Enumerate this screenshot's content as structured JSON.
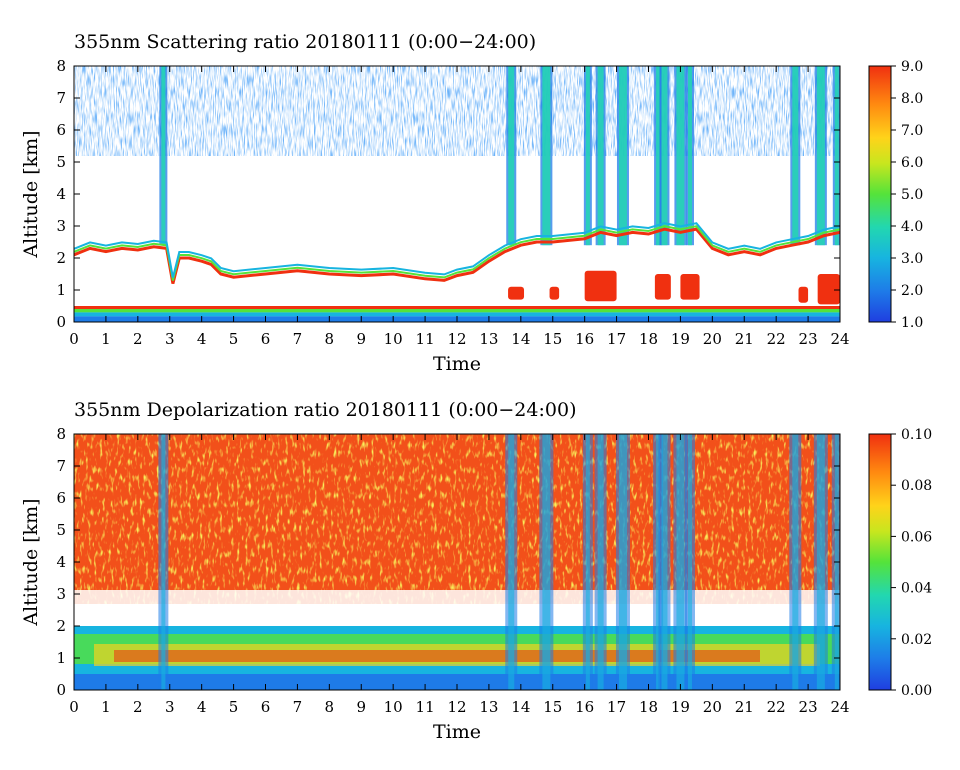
{
  "chart_data": [
    {
      "type": "heatmap",
      "title": "355nm Scattering ratio  20180111 (0:00−24:00)",
      "xlabel": "Time",
      "ylabel": "Altitude [km]",
      "xlim": [
        0,
        24
      ],
      "ylim": [
        0,
        8
      ],
      "x_ticks": [
        "0",
        "1",
        "2",
        "3",
        "4",
        "5",
        "6",
        "7",
        "8",
        "9",
        "10",
        "11",
        "12",
        "13",
        "14",
        "15",
        "16",
        "17",
        "18",
        "19",
        "20",
        "21",
        "22",
        "23",
        "24"
      ],
      "y_ticks": [
        "0",
        "1",
        "2",
        "3",
        "4",
        "5",
        "6",
        "7",
        "8"
      ],
      "colorbar": {
        "range": [
          1.0,
          9.0
        ],
        "tick_labels": [
          "1.0",
          "2.0",
          "3.0",
          "4.0",
          "5.0",
          "6.0",
          "7.0",
          "8.0",
          "9.0"
        ],
        "colormap": "rainbow"
      },
      "layers": {
        "surface_band_km": [
          0.3,
          0.5
        ],
        "boundary_layer_top_km": [
          [
            0,
            2.1
          ],
          [
            0.5,
            2.3
          ],
          [
            1,
            2.2
          ],
          [
            1.5,
            2.3
          ],
          [
            2,
            2.25
          ],
          [
            2.5,
            2.35
          ],
          [
            2.9,
            2.3
          ],
          [
            3.1,
            1.2
          ],
          [
            3.3,
            2.0
          ],
          [
            3.6,
            2.0
          ],
          [
            4,
            1.9
          ],
          [
            4.3,
            1.8
          ],
          [
            4.6,
            1.5
          ],
          [
            5,
            1.4
          ],
          [
            6,
            1.5
          ],
          [
            7,
            1.6
          ],
          [
            8,
            1.5
          ],
          [
            9,
            1.45
          ],
          [
            10,
            1.5
          ],
          [
            11,
            1.35
          ],
          [
            11.6,
            1.3
          ],
          [
            12,
            1.45
          ],
          [
            12.5,
            1.55
          ],
          [
            13,
            1.9
          ],
          [
            13.5,
            2.2
          ],
          [
            14,
            2.4
          ],
          [
            14.5,
            2.5
          ],
          [
            15,
            2.5
          ],
          [
            15.5,
            2.55
          ],
          [
            16,
            2.6
          ],
          [
            16.5,
            2.8
          ],
          [
            17,
            2.7
          ],
          [
            17.5,
            2.8
          ],
          [
            18,
            2.75
          ],
          [
            18.5,
            2.9
          ],
          [
            19,
            2.8
          ],
          [
            19.5,
            2.9
          ],
          [
            20,
            2.3
          ],
          [
            20.5,
            2.1
          ],
          [
            21,
            2.2
          ],
          [
            21.5,
            2.1
          ],
          [
            22,
            2.3
          ],
          [
            22.5,
            2.4
          ],
          [
            23,
            2.5
          ],
          [
            23.5,
            2.7
          ],
          [
            24,
            2.8
          ]
        ],
        "high_ratio_patches": [
          {
            "t": [
              13.6,
              14.1
            ],
            "alt": [
              0.7,
              1.1
            ]
          },
          {
            "t": [
              14.9,
              15.2
            ],
            "alt": [
              0.7,
              1.1
            ]
          },
          {
            "t": [
              16.0,
              17.0
            ],
            "alt": [
              0.65,
              1.6
            ]
          },
          {
            "t": [
              18.2,
              18.7
            ],
            "alt": [
              0.7,
              1.5
            ]
          },
          {
            "t": [
              19.0,
              19.6
            ],
            "alt": [
              0.7,
              1.5
            ]
          },
          {
            "t": [
              22.7,
              23.0
            ],
            "alt": [
              0.6,
              1.1
            ]
          },
          {
            "t": [
              23.3,
              24.0
            ],
            "alt": [
              0.55,
              1.5
            ]
          }
        ],
        "cloud_columns_t": [
          2.8,
          13.7,
          14.8,
          16.1,
          16.5,
          17.2,
          18.3,
          18.5,
          19.0,
          19.3,
          22.6,
          23.4,
          23.9
        ]
      }
    },
    {
      "type": "heatmap",
      "title": "355nm Depolarization ratio  20180111 (0:00−24:00)",
      "xlabel": "Time",
      "ylabel": "Altitude [km]",
      "xlim": [
        0,
        24
      ],
      "ylim": [
        0,
        8
      ],
      "x_ticks": [
        "0",
        "1",
        "2",
        "3",
        "4",
        "5",
        "6",
        "7",
        "8",
        "9",
        "10",
        "11",
        "12",
        "13",
        "14",
        "15",
        "16",
        "17",
        "18",
        "19",
        "20",
        "21",
        "22",
        "23",
        "24"
      ],
      "y_ticks": [
        "0",
        "1",
        "2",
        "3",
        "4",
        "5",
        "6",
        "7",
        "8"
      ],
      "colorbar": {
        "range": [
          0.0,
          0.1
        ],
        "tick_labels": [
          "0.00",
          "0.02",
          "0.04",
          "0.06",
          "0.08",
          "0.10"
        ],
        "colormap": "rainbow"
      },
      "layers": {
        "aerosol_layer_top_km": 2.0,
        "free_troposphere_value": 0.09,
        "cloud_columns_t": [
          2.8,
          13.7,
          14.8,
          16.1,
          16.5,
          17.2,
          18.3,
          18.5,
          19.0,
          19.3,
          22.6,
          23.4,
          23.9
        ]
      }
    }
  ]
}
